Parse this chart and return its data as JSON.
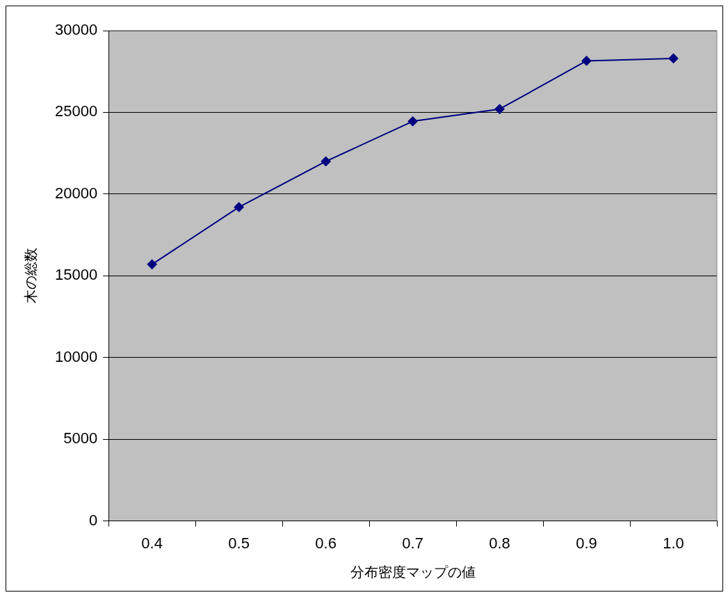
{
  "chart_data": {
    "type": "line",
    "xlabel": "分布密度マップの値",
    "ylabel": "木の総数",
    "categories": [
      "0.4",
      "0.5",
      "0.6",
      "0.7",
      "0.8",
      "0.9",
      "1.0"
    ],
    "series": [
      {
        "color": "#000080",
        "values": [
          15700,
          19200,
          22000,
          24450,
          25200,
          28150,
          28300
        ]
      }
    ],
    "ylim": [
      0,
      30000
    ],
    "yticks": [
      0,
      5000,
      10000,
      15000,
      20000,
      25000,
      30000
    ],
    "grid": "y",
    "legend": false,
    "marker": "diamond",
    "line_style": "solid"
  }
}
